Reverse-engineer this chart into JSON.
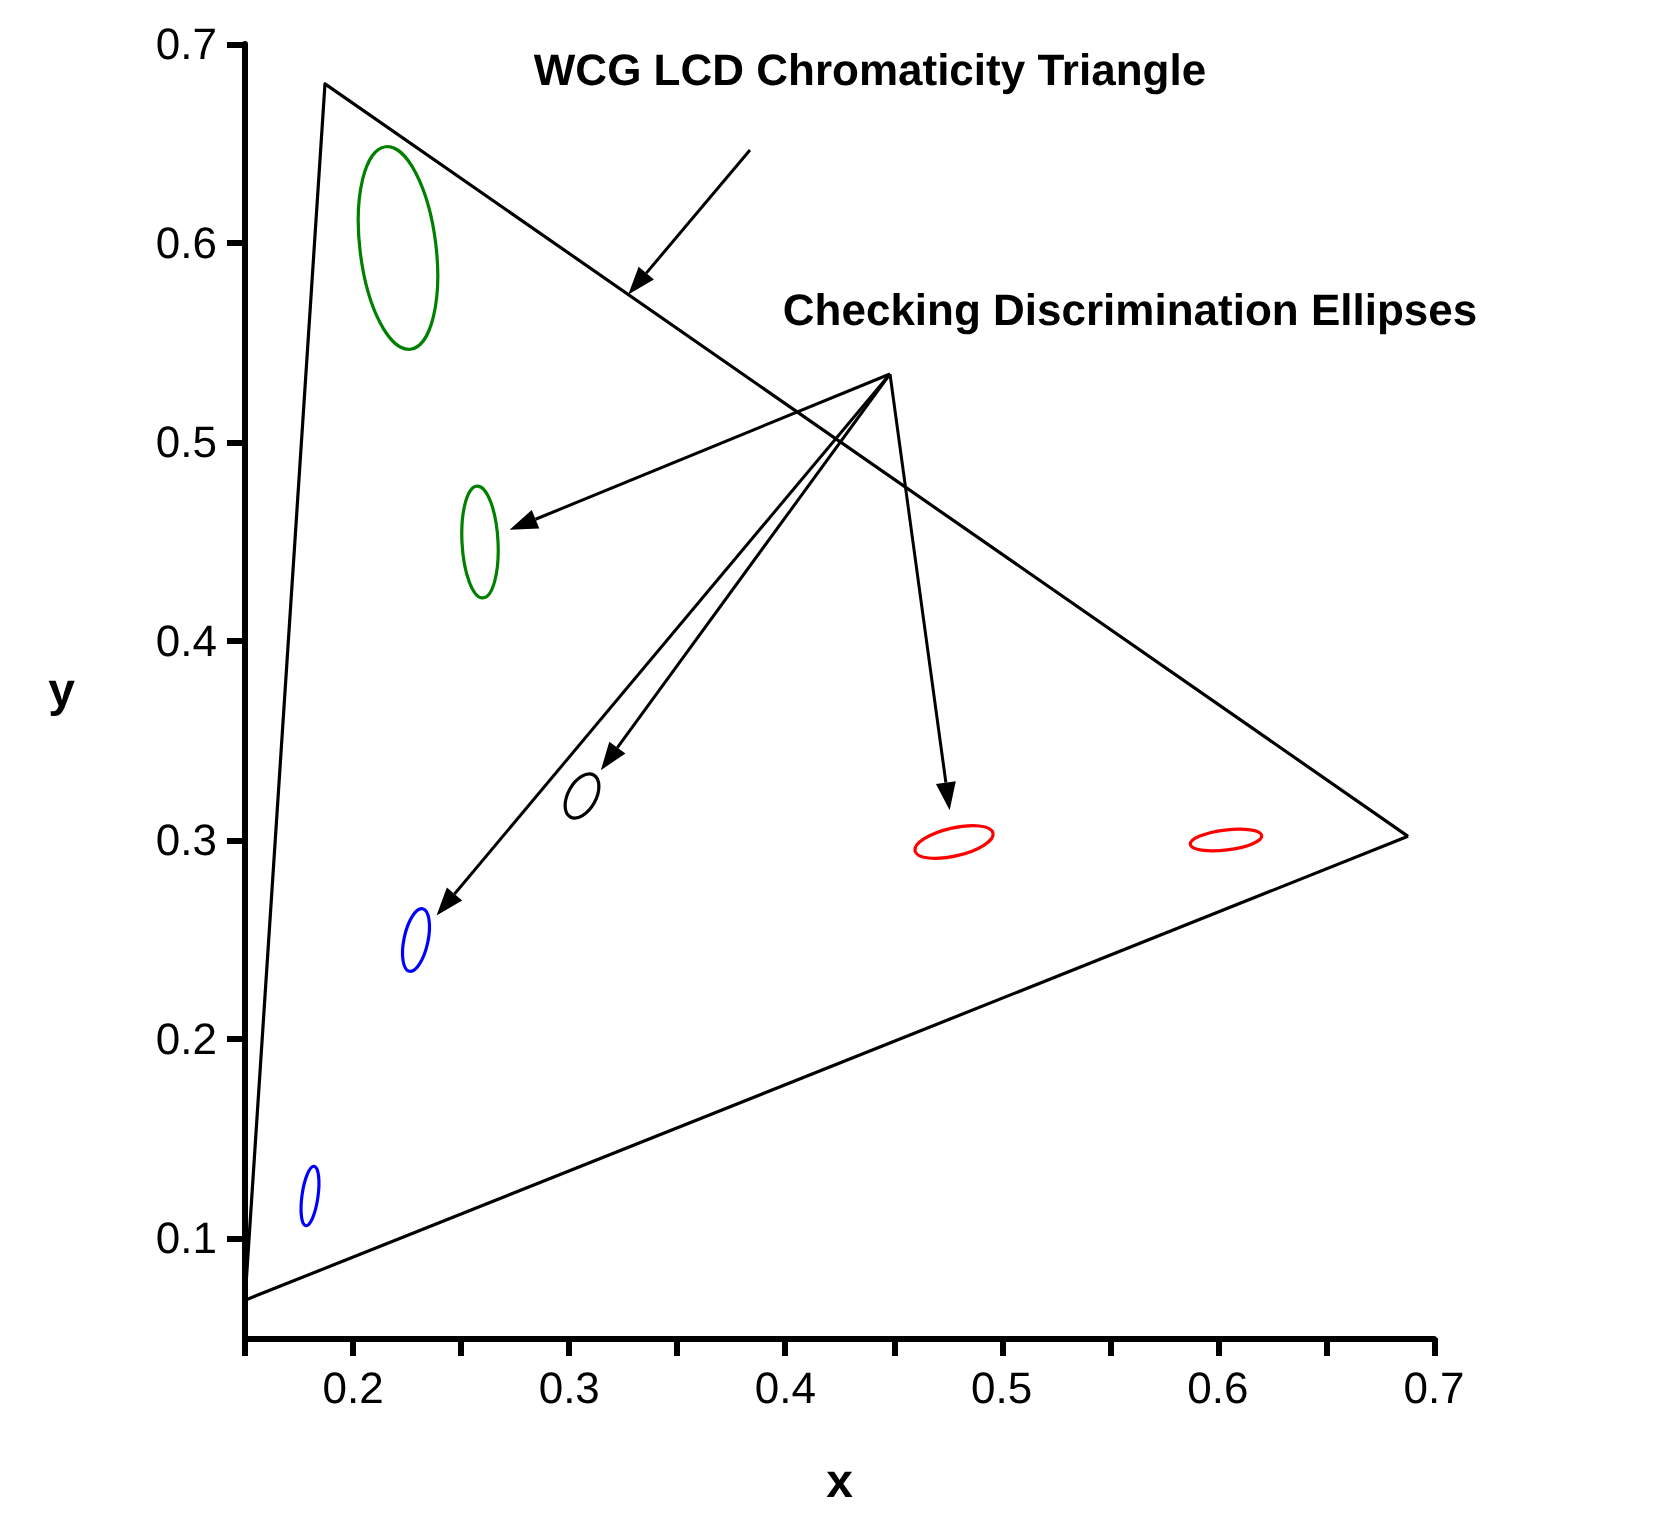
{
  "chart_data": {
    "type": "line",
    "xlabel": "x",
    "ylabel": "y",
    "marker": "none",
    "xlim": [
      0.15,
      0.7
    ],
    "ylim": [
      0.05,
      0.7
    ],
    "xticks": [
      {
        "value": 0.15,
        "label": null
      },
      0.2,
      {
        "value": 0.25,
        "label": null
      },
      0.3,
      {
        "value": 0.35,
        "label": null
      },
      0.4,
      {
        "value": 0.45,
        "label": null
      },
      0.5,
      {
        "value": 0.55,
        "label": null
      },
      0.6,
      {
        "value": 0.65,
        "label": null
      },
      0.7
    ],
    "yticks": [
      0.1,
      0.2,
      0.3,
      0.4,
      0.5,
      0.6,
      0.7
    ],
    "annotations": [
      "WCG LCD Chromaticity Triangle",
      "Checking Discrimination Ellipses"
    ],
    "series": [
      {
        "color": "#000000",
        "x": [
          0.15,
          0.187,
          0.688
        ],
        "values": [
          0.069,
          0.68,
          0.302
        ]
      },
      {
        "color": "#000000",
        "x": [
          0.15,
          0.688
        ],
        "values": [
          0.069,
          0.302
        ]
      }
    ]
  }
}
